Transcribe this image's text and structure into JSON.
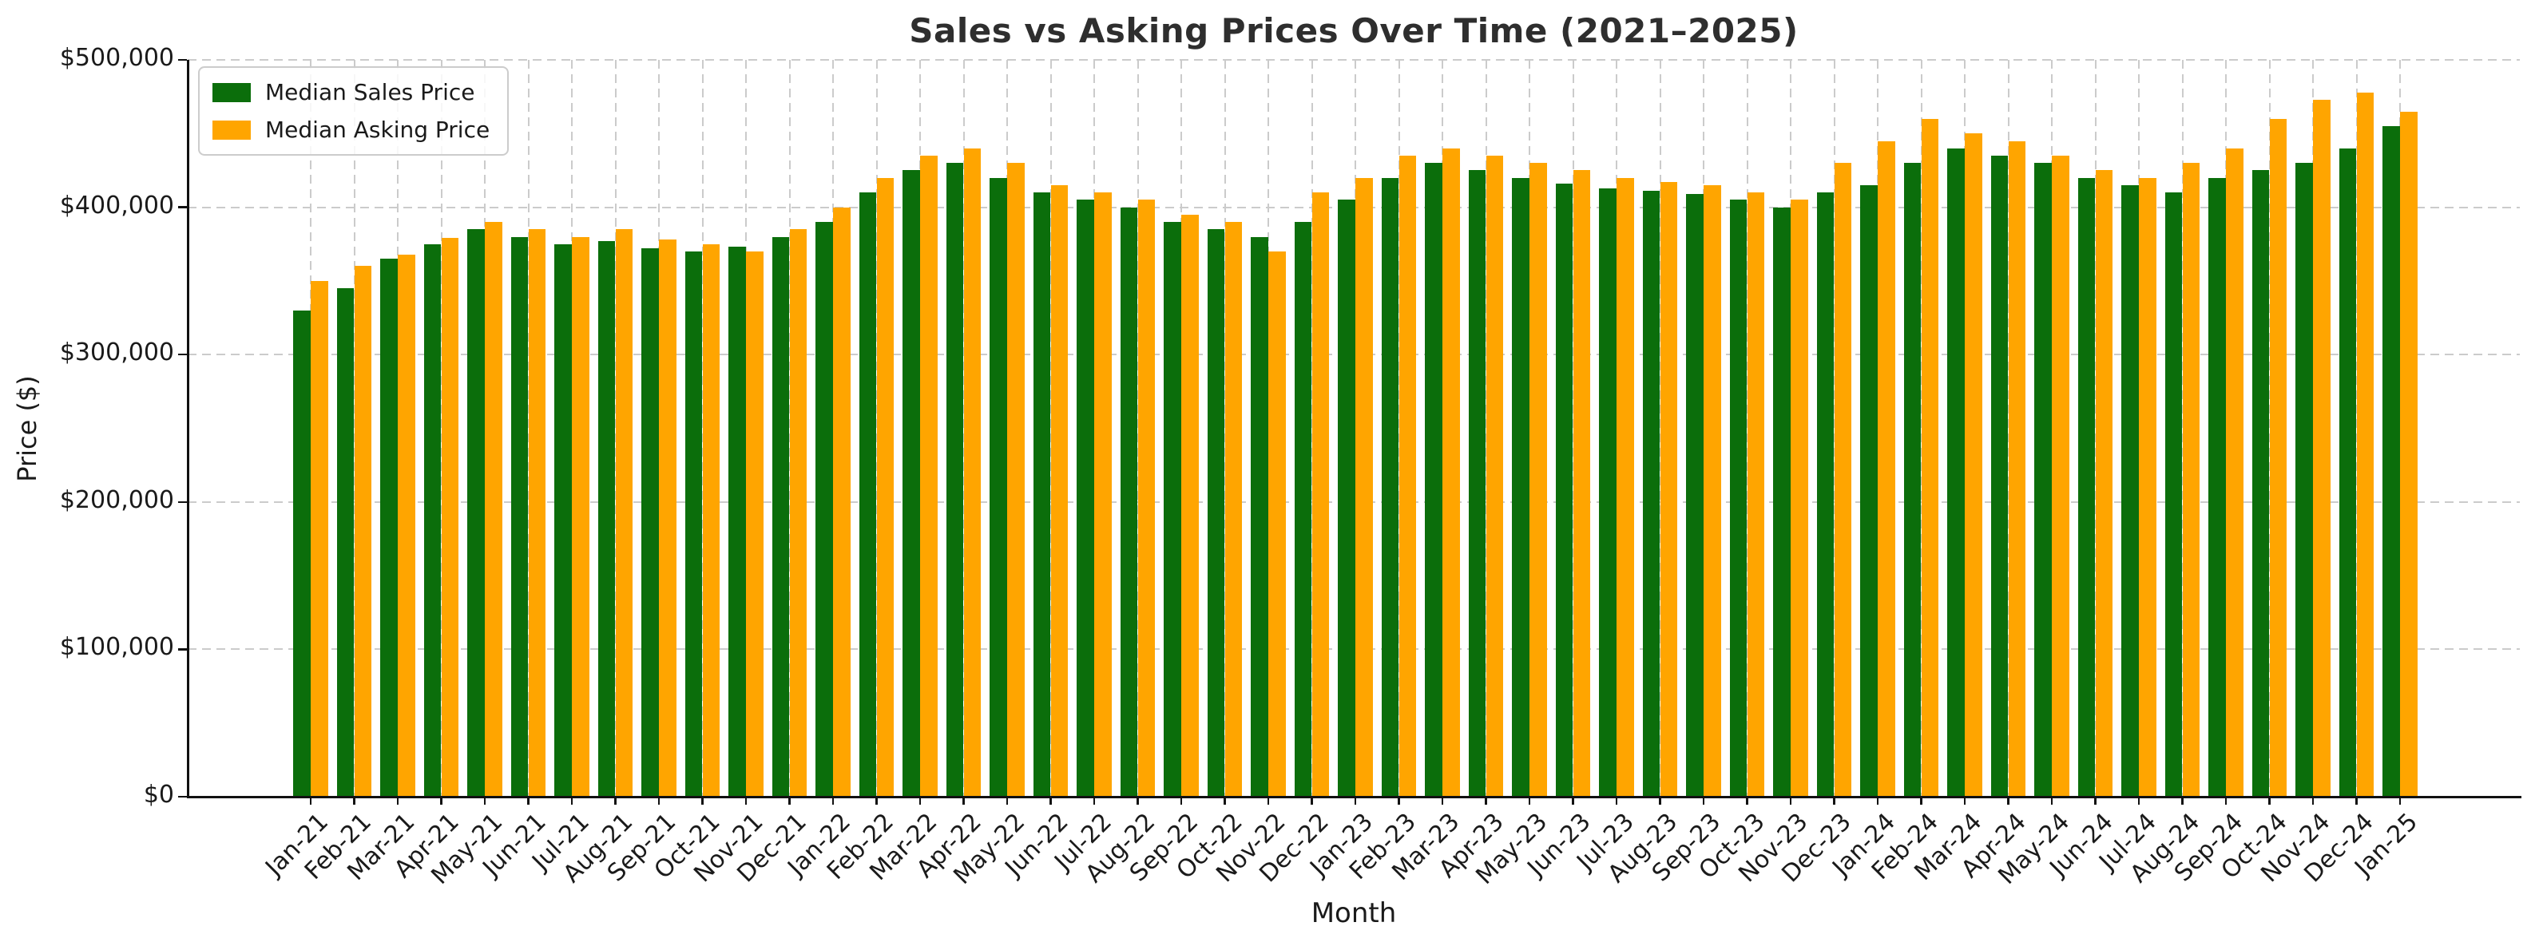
{
  "chart_data": {
    "type": "bar",
    "title": "Sales vs Asking Prices Over Time (2021–2025)",
    "xlabel": "Month",
    "ylabel": "Price ($)",
    "ylim": [
      0,
      500000
    ],
    "ytick_values": [
      0,
      100000,
      200000,
      300000,
      400000,
      500000
    ],
    "ytick_labels": [
      "$0",
      "$100,000",
      "$200,000",
      "$300,000",
      "$400,000",
      "$500,000"
    ],
    "grid": "dashed gray, horizontal and vertical",
    "legend_position": "upper left",
    "categories": [
      "Jan-21",
      "Feb-21",
      "Mar-21",
      "Apr-21",
      "May-21",
      "Jun-21",
      "Jul-21",
      "Aug-21",
      "Sep-21",
      "Oct-21",
      "Nov-21",
      "Dec-21",
      "Jan-22",
      "Feb-22",
      "Mar-22",
      "Apr-22",
      "May-22",
      "Jun-22",
      "Jul-22",
      "Aug-22",
      "Sep-22",
      "Oct-22",
      "Nov-22",
      "Dec-22",
      "Jan-23",
      "Feb-23",
      "Mar-23",
      "Apr-23",
      "May-23",
      "Jun-23",
      "Jul-23",
      "Aug-23",
      "Sep-23",
      "Oct-23",
      "Nov-23",
      "Dec-23",
      "Jan-24",
      "Feb-24",
      "Mar-24",
      "Apr-24",
      "May-24",
      "Jun-24",
      "Jul-24",
      "Aug-24",
      "Sep-24",
      "Oct-24",
      "Nov-24",
      "Dec-24",
      "Jan-25"
    ],
    "series": [
      {
        "name": "Median Sales Price",
        "color": "#0b6e0b",
        "values": [
          330000,
          345000,
          365000,
          375000,
          385000,
          380000,
          375000,
          377000,
          372000,
          370000,
          373000,
          380000,
          390000,
          410000,
          425000,
          430000,
          420000,
          410000,
          405000,
          400000,
          390000,
          385000,
          380000,
          390000,
          405000,
          420000,
          430000,
          425000,
          420000,
          416000,
          413000,
          411000,
          409000,
          405000,
          400000,
          410000,
          415000,
          430000,
          440000,
          435000,
          430000,
          420000,
          415000,
          410000,
          420000,
          425000,
          430000,
          440000,
          455000
        ]
      },
      {
        "name": "Median Asking Price",
        "color": "#ffa500",
        "values": [
          350000,
          360000,
          368000,
          379000,
          390000,
          385000,
          380000,
          385000,
          378000,
          375000,
          370000,
          385000,
          400000,
          420000,
          435000,
          440000,
          430000,
          415000,
          410000,
          405000,
          395000,
          390000,
          370000,
          410000,
          420000,
          435000,
          440000,
          435000,
          430000,
          425000,
          420000,
          417000,
          415000,
          410000,
          405000,
          430000,
          445000,
          460000,
          450000,
          445000,
          435000,
          425000,
          420000,
          430000,
          440000,
          460000,
          473000,
          478000,
          465000
        ]
      }
    ]
  },
  "colors": {
    "background": "#ffffff",
    "grid": "#cbcbcb",
    "spine": "#111111",
    "text": "#1a1a1a",
    "title": "#2e2e2e"
  }
}
